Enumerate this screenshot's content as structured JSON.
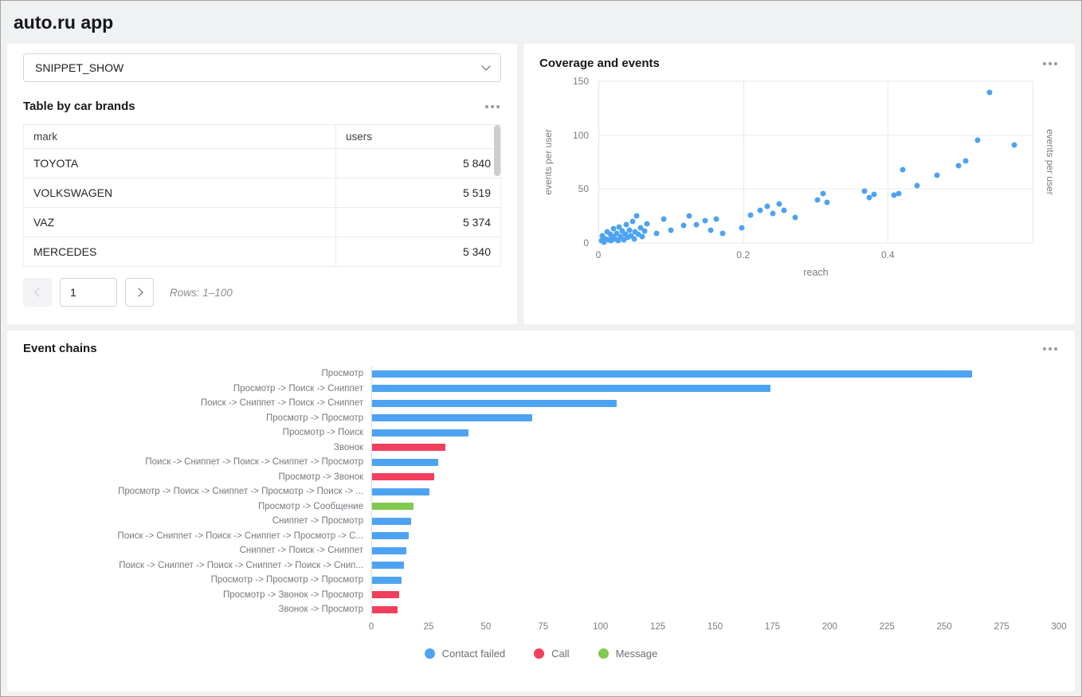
{
  "page": {
    "title": "auto.ru app"
  },
  "filter": {
    "value": "SNIPPET_SHOW"
  },
  "icons": {
    "card_menu": "ellipsis-horizontal",
    "select_arrow": "chevron-down",
    "pager_prev": "chevron-left",
    "pager_next": "chevron-right",
    "legend_marker": "circle"
  },
  "table_card": {
    "title": "Table by car brands",
    "columns": {
      "mark": "mark",
      "users": "users"
    },
    "rows": [
      {
        "mark": "TOYOTA",
        "users": "5 840"
      },
      {
        "mark": "VOLKSWAGEN",
        "users": "5 519"
      },
      {
        "mark": "VAZ",
        "users": "5 374"
      },
      {
        "mark": "MERCEDES",
        "users": "5 340"
      }
    ],
    "pagination": {
      "page_value": "1",
      "rows_info": "Rows: 1–100"
    }
  },
  "chart_data": [
    {
      "type": "scatter",
      "title": "Coverage and events",
      "xlabel": "reach",
      "ylabel_left": "events per user",
      "ylabel_right": "events per user",
      "xlim": [
        0,
        0.6
      ],
      "ylim": [
        0,
        150
      ],
      "xticks": [
        0,
        0.2,
        0.4
      ],
      "yticks": [
        0,
        50,
        100,
        150
      ],
      "grid": true,
      "legend_position": "none",
      "point_color": "#4da3f2",
      "points": [
        [
          0.004,
          2
        ],
        [
          0.006,
          7
        ],
        [
          0.008,
          1
        ],
        [
          0.01,
          4
        ],
        [
          0.012,
          10
        ],
        [
          0.014,
          3
        ],
        [
          0.016,
          8
        ],
        [
          0.018,
          2
        ],
        [
          0.02,
          6
        ],
        [
          0.021,
          13
        ],
        [
          0.023,
          4
        ],
        [
          0.025,
          9
        ],
        [
          0.027,
          2
        ],
        [
          0.029,
          15
        ],
        [
          0.031,
          6
        ],
        [
          0.033,
          11
        ],
        [
          0.035,
          3
        ],
        [
          0.037,
          8
        ],
        [
          0.039,
          17
        ],
        [
          0.041,
          5
        ],
        [
          0.043,
          12
        ],
        [
          0.045,
          7
        ],
        [
          0.047,
          20
        ],
        [
          0.049,
          4
        ],
        [
          0.051,
          10
        ],
        [
          0.053,
          25
        ],
        [
          0.055,
          8
        ],
        [
          0.058,
          14
        ],
        [
          0.061,
          6
        ],
        [
          0.064,
          11
        ],
        [
          0.067,
          18
        ],
        [
          0.08,
          9
        ],
        [
          0.09,
          22
        ],
        [
          0.1,
          12
        ],
        [
          0.118,
          16
        ],
        [
          0.126,
          25
        ],
        [
          0.135,
          17
        ],
        [
          0.148,
          21
        ],
        [
          0.155,
          12
        ],
        [
          0.163,
          22
        ],
        [
          0.172,
          9
        ],
        [
          0.198,
          14
        ],
        [
          0.21,
          26
        ],
        [
          0.224,
          30
        ],
        [
          0.233,
          34
        ],
        [
          0.241,
          27
        ],
        [
          0.25,
          36
        ],
        [
          0.257,
          30
        ],
        [
          0.272,
          24
        ],
        [
          0.303,
          40
        ],
        [
          0.31,
          46
        ],
        [
          0.316,
          38
        ],
        [
          0.368,
          48
        ],
        [
          0.374,
          42
        ],
        [
          0.381,
          45
        ],
        [
          0.408,
          44
        ],
        [
          0.415,
          46
        ],
        [
          0.42,
          68
        ],
        [
          0.44,
          53
        ],
        [
          0.468,
          63
        ],
        [
          0.498,
          72
        ],
        [
          0.508,
          76
        ],
        [
          0.524,
          95
        ],
        [
          0.54,
          140
        ],
        [
          0.575,
          91
        ]
      ]
    },
    {
      "type": "bar",
      "orientation": "horizontal",
      "title": "Event chains",
      "xlim": [
        0,
        300
      ],
      "xticks": [
        0,
        25,
        50,
        75,
        100,
        125,
        150,
        175,
        200,
        225,
        250,
        275,
        300
      ],
      "legend_position": "bottom",
      "series_colors": {
        "Contact failed": "#4da3f2",
        "Call": "#f23f5d",
        "Message": "#82c94f"
      },
      "legend": [
        {
          "label": "Contact failed",
          "color": "#4da3f2"
        },
        {
          "label": "Call",
          "color": "#f23f5d"
        },
        {
          "label": "Message",
          "color": "#82c94f"
        }
      ],
      "bars": [
        {
          "label": "Просмотр",
          "value": 262,
          "series": "Contact failed"
        },
        {
          "label": "Просмотр -> Поиск -> Сниппет",
          "value": 174,
          "series": "Contact failed"
        },
        {
          "label": "Поиск -> Сниппет -> Поиск -> Сниппет",
          "value": 107,
          "series": "Contact failed"
        },
        {
          "label": "Просмотр -> Просмотр",
          "value": 70,
          "series": "Contact failed"
        },
        {
          "label": "Просмотр -> Поиск",
          "value": 42,
          "series": "Contact failed"
        },
        {
          "label": "Звонок",
          "value": 32,
          "series": "Call"
        },
        {
          "label": "Поиск -> Сниппет -> Поиск -> Сниппет -> Просмотр",
          "value": 29,
          "series": "Contact failed"
        },
        {
          "label": "Просмотр -> Звонок",
          "value": 27,
          "series": "Call"
        },
        {
          "label": "Просмотр -> Поиск -> Сниппет -> Просмотр -> Поиск -> ...",
          "value": 25,
          "series": "Contact failed"
        },
        {
          "label": "Просмотр -> Сообщение",
          "value": 18,
          "series": "Message"
        },
        {
          "label": "Сниппет -> Просмотр",
          "value": 17,
          "series": "Contact failed"
        },
        {
          "label": "Поиск -> Сниппет -> Поиск -> Сниппет -> Просмотр -> С...",
          "value": 16,
          "series": "Contact failed"
        },
        {
          "label": "Сниппет -> Поиск -> Сниппет",
          "value": 15,
          "series": "Contact failed"
        },
        {
          "label": "Поиск -> Сниппет -> Поиск -> Сниппет -> Поиск -> Снип...",
          "value": 14,
          "series": "Contact failed"
        },
        {
          "label": "Просмотр -> Просмотр -> Просмотр",
          "value": 13,
          "series": "Contact failed"
        },
        {
          "label": "Просмотр -> Звонок -> Просмотр",
          "value": 12,
          "series": "Call"
        },
        {
          "label": "Звонок -> Просмотр",
          "value": 11,
          "series": "Call"
        }
      ]
    }
  ]
}
